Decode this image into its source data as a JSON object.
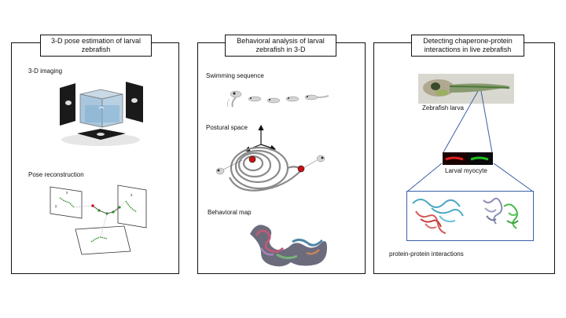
{
  "panels": [
    {
      "title_line1": "3-D pose estimation of larval",
      "title_line2": "zebrafish",
      "labels": [
        "3-D imaging",
        "Pose reconstruction"
      ]
    },
    {
      "title_line1": "Behavioral analysis of larval",
      "title_line2": "zebrafish in 3-D",
      "labels": [
        "Swimming sequence",
        "Postural space",
        "Behavioral map"
      ]
    },
    {
      "title_line1": "Detecting chaperone-protein",
      "title_line2": "interactions in live zebrafish",
      "labels": [
        "Zebrafish larva",
        "Larval myocyte",
        "protein-protein interactions"
      ]
    }
  ],
  "colors": {
    "border": "#111111",
    "red": "#cc1111",
    "green": "#22aa22",
    "cyan": "#4aa8c4",
    "grey": "#888888"
  }
}
